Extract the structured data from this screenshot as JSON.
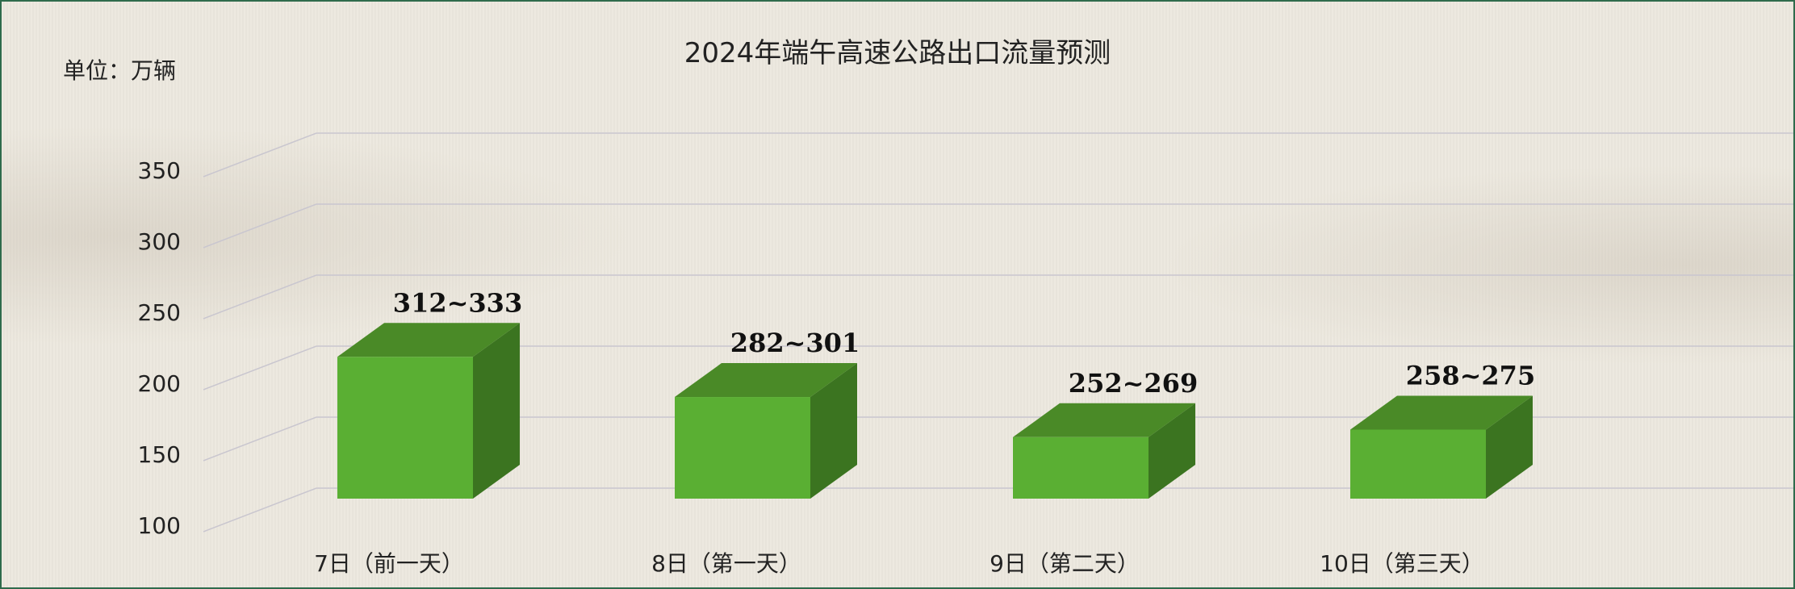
{
  "chart_data": {
    "type": "bar",
    "title": "2024年端午高速公路出口流量预测",
    "unit_label": "单位：万辆",
    "categories": [
      "7日（前一天）",
      "8日（第一天）",
      "9日（第二天）",
      "10日（第三天）"
    ],
    "values": [
      333,
      301,
      269,
      275
    ],
    "ranges": [
      [
        312,
        333
      ],
      [
        282,
        301
      ],
      [
        252,
        269
      ],
      [
        258,
        275
      ]
    ],
    "data_labels": [
      "312~333",
      "282~301",
      "252~269",
      "258~275"
    ],
    "y_ticks": [
      100,
      150,
      200,
      250,
      300,
      350
    ],
    "ylim": [
      100,
      400
    ],
    "bar_style": "3d",
    "grid": true,
    "colors": {
      "bar_front": "#5aaf33",
      "bar_top": "#4a8a27",
      "bar_side": "#3b7420",
      "grid": "#c9c6cf",
      "border": "#2f6b4c"
    }
  }
}
